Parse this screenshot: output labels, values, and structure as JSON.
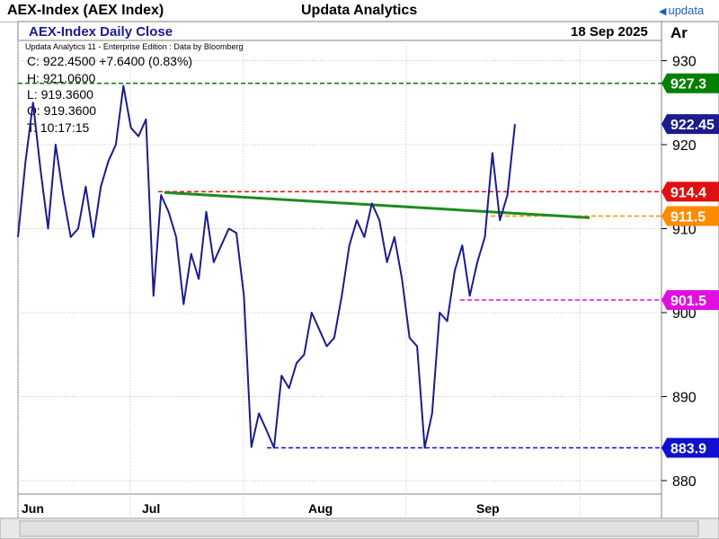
{
  "header": {
    "title": "AEX-Index (AEX Index)",
    "vendor": "Updata Analytics",
    "brand": "updata"
  },
  "panel": {
    "chart_title": "AEX-Index Daily Close",
    "date": "18 Sep 2025",
    "axis_label": "Ar",
    "edition": "Updata Analytics 11 - Enterprise Edition : Data by Bloomberg",
    "ohlc": {
      "close": "C: 922.4500  +7.6400 (0.83%)",
      "high": "H: 921.0600",
      "low": "L: 919.3600",
      "open": "O: 919.3600",
      "time": "T: 10:17:15"
    }
  },
  "colors": {
    "price": "#1c1c8c",
    "trend": "#1e8c1e",
    "level_927": "#008000",
    "level_914": "#e01010",
    "level_911": "#ff8c00",
    "level_901": "#e010e0",
    "level_883": "#1010d0",
    "grid": "#c0c0c0"
  },
  "chart_data": {
    "type": "line",
    "title": "AEX-Index Daily Close",
    "ylim": [
      875,
      935
    ],
    "y_ticks": [
      "880",
      "890",
      "900",
      "910",
      "920",
      "930"
    ],
    "x_ticks": [
      "Jun",
      "Jul",
      "Aug",
      "Sep"
    ],
    "series": [
      {
        "values": [
          909,
          918,
          925,
          917,
          910,
          920,
          914,
          909,
          910,
          915,
          909,
          915,
          918,
          920,
          927,
          922,
          921,
          923,
          902,
          914,
          912,
          909,
          901,
          907,
          904,
          912,
          906,
          908,
          910,
          909.5,
          902,
          884,
          888,
          886,
          883.9,
          892.5,
          891,
          894,
          895,
          900,
          898,
          896,
          897,
          902,
          908,
          911,
          909,
          913,
          911,
          906,
          909,
          904,
          897,
          896,
          883.9,
          888,
          900,
          899,
          905,
          908,
          902,
          906,
          909,
          919,
          911,
          914,
          922.45
        ]
      }
    ],
    "trendline": {
      "x": [
        0,
        1
      ],
      "y": [
        914.3,
        911.3
      ]
    },
    "levels": [
      {
        "label": "927.3",
        "value": 927.3
      },
      {
        "label": "922.45",
        "value": 922.45
      },
      {
        "label": "914.4",
        "value": 914.4
      },
      {
        "label": "911.5",
        "value": 911.5
      },
      {
        "label": "901.5",
        "value": 901.5
      },
      {
        "label": "883.9",
        "value": 883.9
      }
    ]
  }
}
